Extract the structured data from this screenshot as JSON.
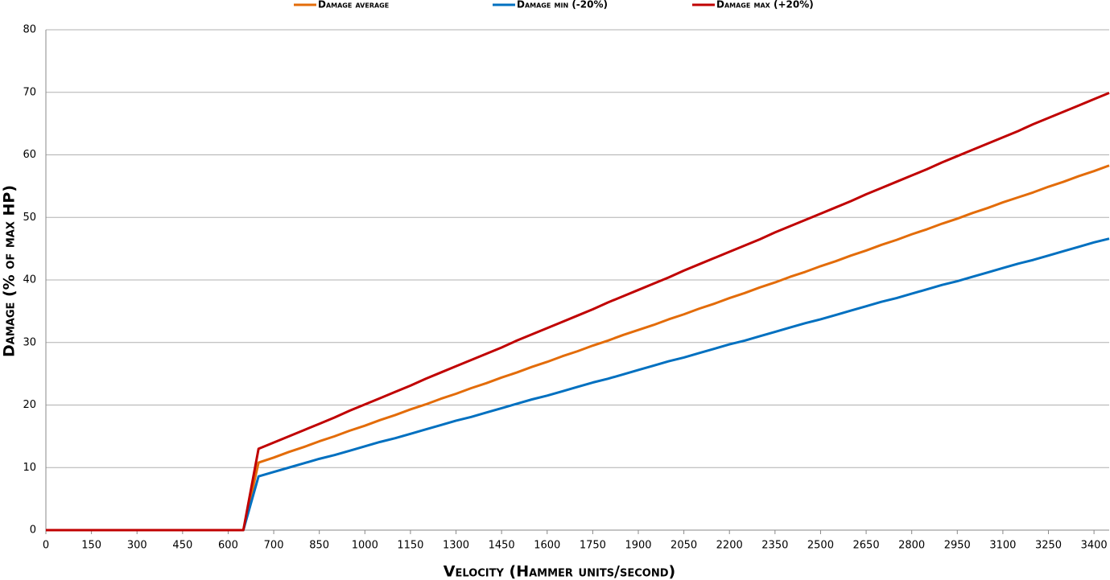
{
  "chart_data": {
    "type": "line",
    "x_label": "Velocity (Hammer units/second)",
    "y_label": "Damage (% of max HP)",
    "categories": [
      0,
      null,
      null,
      150,
      null,
      null,
      300,
      null,
      null,
      450,
      null,
      null,
      600,
      null,
      null,
      700,
      null,
      null,
      850,
      null,
      null,
      1000,
      null,
      null,
      1150,
      null,
      null,
      1300,
      null,
      null,
      1450,
      null,
      null,
      1600,
      null,
      null,
      1750,
      null,
      null,
      1900,
      null,
      null,
      2050,
      null,
      null,
      2200,
      null,
      null,
      2350,
      null,
      null,
      2500,
      null,
      null,
      2650,
      null,
      null,
      2800,
      null,
      null,
      2950,
      null,
      null,
      3100,
      null,
      null,
      3250,
      null,
      null,
      3400,
      null
    ],
    "series": [
      {
        "name": "Damage average",
        "color": "#e36c09",
        "values": [
          0,
          0,
          0,
          0,
          0,
          0,
          0,
          0,
          0,
          0,
          0,
          0,
          0,
          0,
          10.8,
          11.6,
          12.5,
          13.3,
          14.2,
          15.0,
          15.9,
          16.7,
          17.6,
          18.4,
          19.3,
          20.1,
          21.0,
          21.8,
          22.7,
          23.5,
          24.4,
          25.2,
          26.1,
          26.9,
          27.8,
          28.6,
          29.5,
          30.3,
          31.2,
          32.0,
          32.8,
          33.7,
          34.5,
          35.4,
          36.2,
          37.1,
          37.9,
          38.8,
          39.6,
          40.5,
          41.3,
          42.2,
          43.0,
          43.9,
          44.7,
          45.6,
          46.4,
          47.3,
          48.1,
          49.0,
          49.8,
          50.7,
          51.5,
          52.4,
          53.2,
          54.0,
          54.9,
          55.7,
          56.6,
          57.4,
          58.3
        ]
      },
      {
        "name": "Damage min (-20%)",
        "color": "#0070c0",
        "values": [
          0,
          0,
          0,
          0,
          0,
          0,
          0,
          0,
          0,
          0,
          0,
          0,
          0,
          0,
          8.6,
          9.3,
          10.0,
          10.7,
          11.4,
          12.0,
          12.7,
          13.4,
          14.1,
          14.7,
          15.4,
          16.1,
          16.8,
          17.5,
          18.1,
          18.8,
          19.5,
          20.2,
          20.9,
          21.5,
          22.2,
          22.9,
          23.6,
          24.2,
          24.9,
          25.6,
          26.3,
          27.0,
          27.6,
          28.3,
          29.0,
          29.7,
          30.3,
          31.0,
          31.7,
          32.4,
          33.1,
          33.7,
          34.4,
          35.1,
          35.8,
          36.5,
          37.1,
          37.8,
          38.5,
          39.2,
          39.8,
          40.5,
          41.2,
          41.9,
          42.6,
          43.2,
          43.9,
          44.6,
          45.3,
          46.0,
          46.6
        ]
      },
      {
        "name": "Damage max (+20%)",
        "color": "#c00000",
        "values": [
          0,
          0,
          0,
          0,
          0,
          0,
          0,
          0,
          0,
          0,
          0,
          0,
          0,
          0,
          13.0,
          14.0,
          15.0,
          16.0,
          17.0,
          18.0,
          19.1,
          20.1,
          21.1,
          22.1,
          23.1,
          24.2,
          25.2,
          26.2,
          27.2,
          28.2,
          29.2,
          30.3,
          31.3,
          32.3,
          33.3,
          34.3,
          35.3,
          36.4,
          37.4,
          38.4,
          39.4,
          40.4,
          41.5,
          42.5,
          43.5,
          44.5,
          45.5,
          46.5,
          47.6,
          48.6,
          49.6,
          50.6,
          51.6,
          52.6,
          53.7,
          54.7,
          55.7,
          56.7,
          57.7,
          58.8,
          59.8,
          60.8,
          61.8,
          62.8,
          63.8,
          64.9,
          65.9,
          66.9,
          67.9,
          68.9,
          69.9
        ]
      }
    ],
    "ylim": [
      0,
      80
    ],
    "yticks": [
      0,
      10,
      20,
      30,
      40,
      50,
      60,
      70,
      80
    ],
    "grid": true
  }
}
